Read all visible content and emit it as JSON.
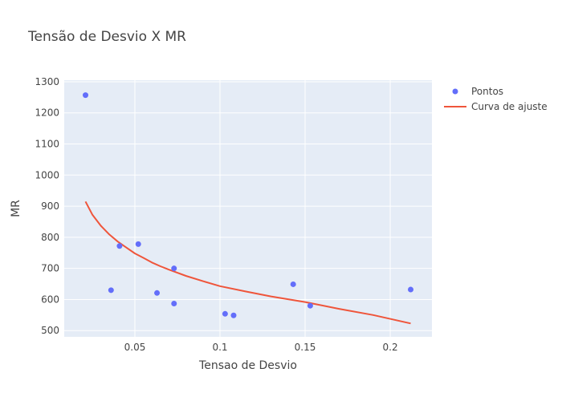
{
  "chart_data": {
    "type": "scatter",
    "title": "Tensão de Desvio X MR",
    "xlabel": "Tensao de Desvio",
    "ylabel": "MR",
    "xlim": [
      0.0085,
      0.2245
    ],
    "ylim": [
      480,
      1305
    ],
    "xticks": [
      0.05,
      0.1,
      0.15,
      0.2
    ],
    "xtick_labels": [
      "0.05",
      "0.1",
      "0.15",
      "0.2"
    ],
    "yticks": [
      500,
      600,
      700,
      800,
      900,
      1000,
      1100,
      1200,
      1300
    ],
    "ytick_labels": [
      "500",
      "600",
      "700",
      "800",
      "900",
      "1000",
      "1100",
      "1200",
      "1300"
    ],
    "grid": true,
    "legend_position": "top-right",
    "series": [
      {
        "name": "Pontos",
        "mode": "markers",
        "color": "#636efa",
        "x": [
          0.021,
          0.036,
          0.041,
          0.052,
          0.063,
          0.073,
          0.073,
          0.103,
          0.108,
          0.143,
          0.153,
          0.212
        ],
        "y": [
          1257,
          630,
          772,
          778,
          621,
          700,
          587,
          554,
          549,
          649,
          580,
          632
        ]
      },
      {
        "name": "Curva de ajuste",
        "mode": "lines",
        "color": "#ef553b",
        "x": [
          0.021,
          0.025,
          0.03,
          0.035,
          0.04,
          0.045,
          0.05,
          0.055,
          0.06,
          0.065,
          0.07,
          0.08,
          0.09,
          0.1,
          0.115,
          0.13,
          0.15,
          0.17,
          0.19,
          0.212
        ],
        "y": [
          915,
          873,
          837,
          809,
          786,
          767,
          748,
          734,
          719,
          707,
          696,
          676,
          659,
          643,
          626,
          610,
          592,
          570,
          550,
          523
        ]
      }
    ]
  }
}
